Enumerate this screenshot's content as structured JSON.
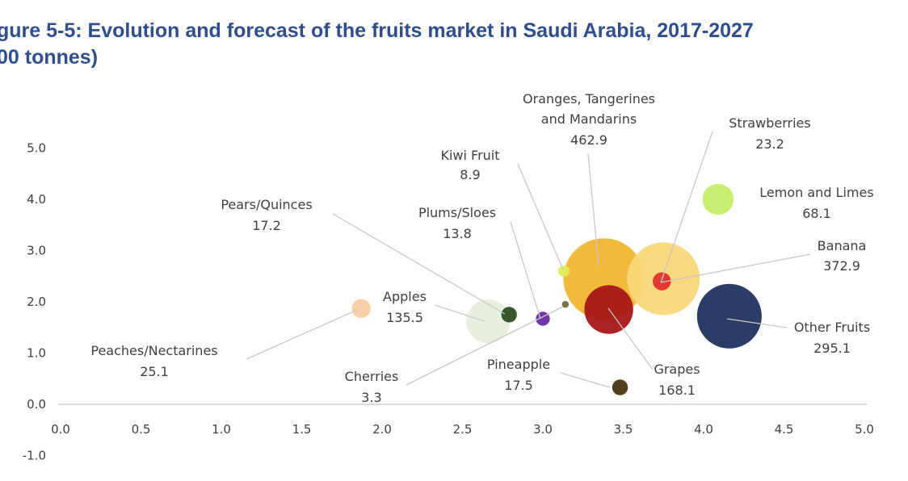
{
  "title_lines": [
    "gure 5-5: Evolution and forecast of the fruits market in Saudi Arabia, 2017-2027",
    "00 tonnes)"
  ],
  "chart_data": {
    "type": "scatter",
    "title": "gure 5-5: Evolution and forecast of the fruits market in Saudi Arabia, 2017-2027 00 tonnes)",
    "xlabel": "",
    "ylabel": "",
    "xlim": [
      0,
      5
    ],
    "ylim": [
      -1,
      5
    ],
    "x_ticks": [
      "0.0",
      "0.5",
      "1.0",
      "1.5",
      "2.0",
      "2.5",
      "3.0",
      "3.5",
      "4.0",
      "4.5",
      "5.0"
    ],
    "y_ticks": [
      "5.0",
      "4.0",
      "3.0",
      "2.0",
      "1.0",
      "0.0",
      "-1.0"
    ],
    "grid": false,
    "legend": "none",
    "points": [
      {
        "name": "Oranges, Tangerines and Mandarins",
        "value_label": "462.9",
        "size": 462.9,
        "x": 3.38,
        "y": 2.45,
        "color": "#f0b630"
      },
      {
        "name": "Banana",
        "value_label": "372.9",
        "size": 372.9,
        "x": 3.75,
        "y": 2.45,
        "color": "#f9d87a"
      },
      {
        "name": "Other Fruits",
        "value_label": "295.1",
        "size": 295.1,
        "x": 4.16,
        "y": 1.72,
        "color": "#1f335e"
      },
      {
        "name": "Grapes",
        "value_label": "168.1",
        "size": 168.1,
        "x": 3.41,
        "y": 1.85,
        "color": "#a51616"
      },
      {
        "name": "Apples",
        "value_label": "135.5",
        "size": 135.5,
        "x": 2.66,
        "y": 1.62,
        "color": "#e7eedc"
      },
      {
        "name": "Lemon and Limes",
        "value_label": "68.1",
        "size": 68.1,
        "x": 4.09,
        "y": 4.0,
        "color": "#c6ee6a"
      },
      {
        "name": "Peaches/Nectarines",
        "value_label": "25.1",
        "size": 25.1,
        "x": 1.87,
        "y": 1.87,
        "color": "#f8cca2"
      },
      {
        "name": "Strawberries",
        "value_label": "23.2",
        "size": 23.2,
        "x": 3.74,
        "y": 2.4,
        "color": "#e03030"
      },
      {
        "name": "Pineapple",
        "value_label": "17.5",
        "size": 17.5,
        "x": 3.48,
        "y": 0.33,
        "color": "#4a3512"
      },
      {
        "name": "Pears/Quinces",
        "value_label": "17.2",
        "size": 17.2,
        "x": 2.79,
        "y": 1.75,
        "color": "#2e4d22"
      },
      {
        "name": "Plums/Sloes",
        "value_label": "13.8",
        "size": 13.8,
        "x": 3.0,
        "y": 1.67,
        "color": "#6a2ea0"
      },
      {
        "name": "Kiwi Fruit",
        "value_label": "8.9",
        "size": 8.9,
        "x": 3.13,
        "y": 2.6,
        "color": "#e2ee58"
      },
      {
        "name": "Cherries",
        "value_label": "3.3",
        "size": 3.3,
        "x": 3.14,
        "y": 1.95,
        "color": "#6e6a3a"
      }
    ]
  }
}
